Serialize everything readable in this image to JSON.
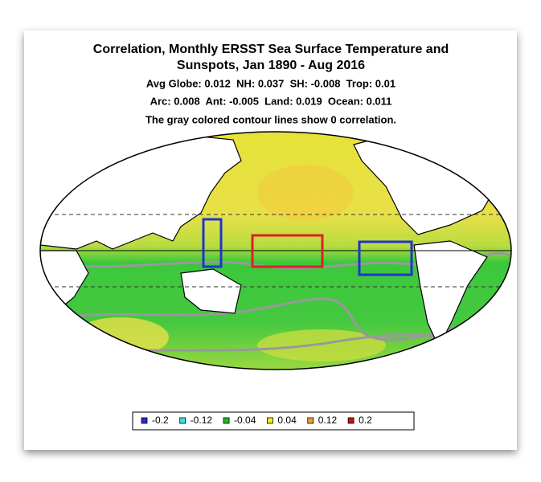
{
  "header": {
    "title_lines": [
      "Correlation, Monthly ERSST Sea Surface Temperature and",
      "Sunspots, Jan 1890 - Aug 2016"
    ],
    "stats_lines": [
      "Avg Globe: 0.012  NH: 0.037  SH: -0.008  Trop: 0.01",
      "Arc: 0.008  Ant: -0.005  Land: 0.019  Ocean: 0.011"
    ],
    "note": "The gray colored contour lines show 0 correlation."
  },
  "legend": {
    "items": [
      {
        "label": "-0.2",
        "color": "#2b2bd0"
      },
      {
        "label": "-0.12",
        "color": "#40e0e0"
      },
      {
        "label": "-0.04",
        "color": "#22bb22"
      },
      {
        "label": "0.04",
        "color": "#eeee22"
      },
      {
        "label": "0.12",
        "color": "#f0a030"
      },
      {
        "label": "0.2",
        "color": "#cc1111"
      }
    ]
  }
}
